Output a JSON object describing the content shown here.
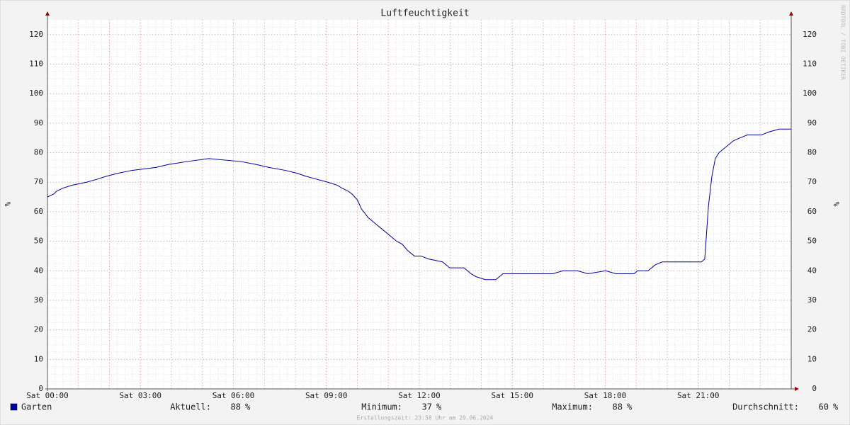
{
  "chart_data": {
    "type": "line",
    "title": "Luftfeuchtigkeit",
    "y_label": "%",
    "xlim": [
      0,
      24
    ],
    "xticks": [
      {
        "value": 0,
        "label": "Sat 00:00"
      },
      {
        "value": 3,
        "label": "Sat 03:00"
      },
      {
        "value": 6,
        "label": "Sat 06:00"
      },
      {
        "value": 9,
        "label": "Sat 09:00"
      },
      {
        "value": 12,
        "label": "Sat 12:00"
      },
      {
        "value": 15,
        "label": "Sat 15:00"
      },
      {
        "value": 18,
        "label": "Sat 18:00"
      },
      {
        "value": 21,
        "label": "Sat 21:00"
      }
    ],
    "ylim": [
      0,
      125
    ],
    "yticks": [
      0,
      10,
      20,
      30,
      40,
      50,
      60,
      70,
      80,
      90,
      100,
      110,
      120
    ],
    "grid": true,
    "x": [
      0,
      0.2,
      0.3,
      0.5,
      0.8,
      1.26,
      1.6,
      1.9,
      2.26,
      2.72,
      3.5,
      3.9,
      4.5,
      5.2,
      6.24,
      6.74,
      7.15,
      7.68,
      8.07,
      8.34,
      8.69,
      9.05,
      9.35,
      9.5,
      9.7,
      9.83,
      10.0,
      10.13,
      10.35,
      10.58,
      10.81,
      11.04,
      11.27,
      11.45,
      11.61,
      11.84,
      12.05,
      12.3,
      12.75,
      12.98,
      13.44,
      13.67,
      13.83,
      14.13,
      14.47,
      14.7,
      15.04,
      16.3,
      16.64,
      17.1,
      17.44,
      18.01,
      18.35,
      18.93,
      19.04,
      19.38,
      19.61,
      19.84,
      20.3,
      21.1,
      21.21,
      21.33,
      21.44,
      21.55,
      21.67,
      21.9,
      22.13,
      22.35,
      22.58,
      23.04,
      23.27,
      23.61,
      24
    ],
    "series": [
      {
        "name": "Garten",
        "color": "#0000a0",
        "values": [
          65,
          66,
          67,
          68,
          69,
          70,
          71,
          72,
          73,
          74,
          75,
          76,
          77,
          78,
          77,
          76,
          75,
          74,
          73,
          72,
          71,
          70,
          69,
          68,
          67,
          66,
          64,
          61,
          58,
          56,
          54,
          52,
          50,
          49,
          47,
          45,
          45,
          44,
          43,
          41,
          41,
          39,
          38,
          37,
          37,
          39,
          39,
          39,
          40,
          40,
          39,
          40,
          39,
          39,
          40,
          40,
          42,
          43,
          43,
          43,
          44,
          62,
          72,
          78,
          80,
          82,
          84,
          85,
          86,
          86,
          87,
          88,
          88
        ]
      }
    ],
    "stats": [
      {
        "label": "Aktuell:",
        "value": 88,
        "unit": "%"
      },
      {
        "label": "Minimum:",
        "value": 37,
        "unit": "%"
      },
      {
        "label": "Maximum:",
        "value": 88,
        "unit": "%"
      },
      {
        "label": "Durchschnitt:",
        "value": 60,
        "unit": "%"
      }
    ],
    "footer": "Erstellungszeit: 23:58 Uhr am 29.06.2024",
    "brand": "RRDTOOL / TOBI OETIKER"
  }
}
